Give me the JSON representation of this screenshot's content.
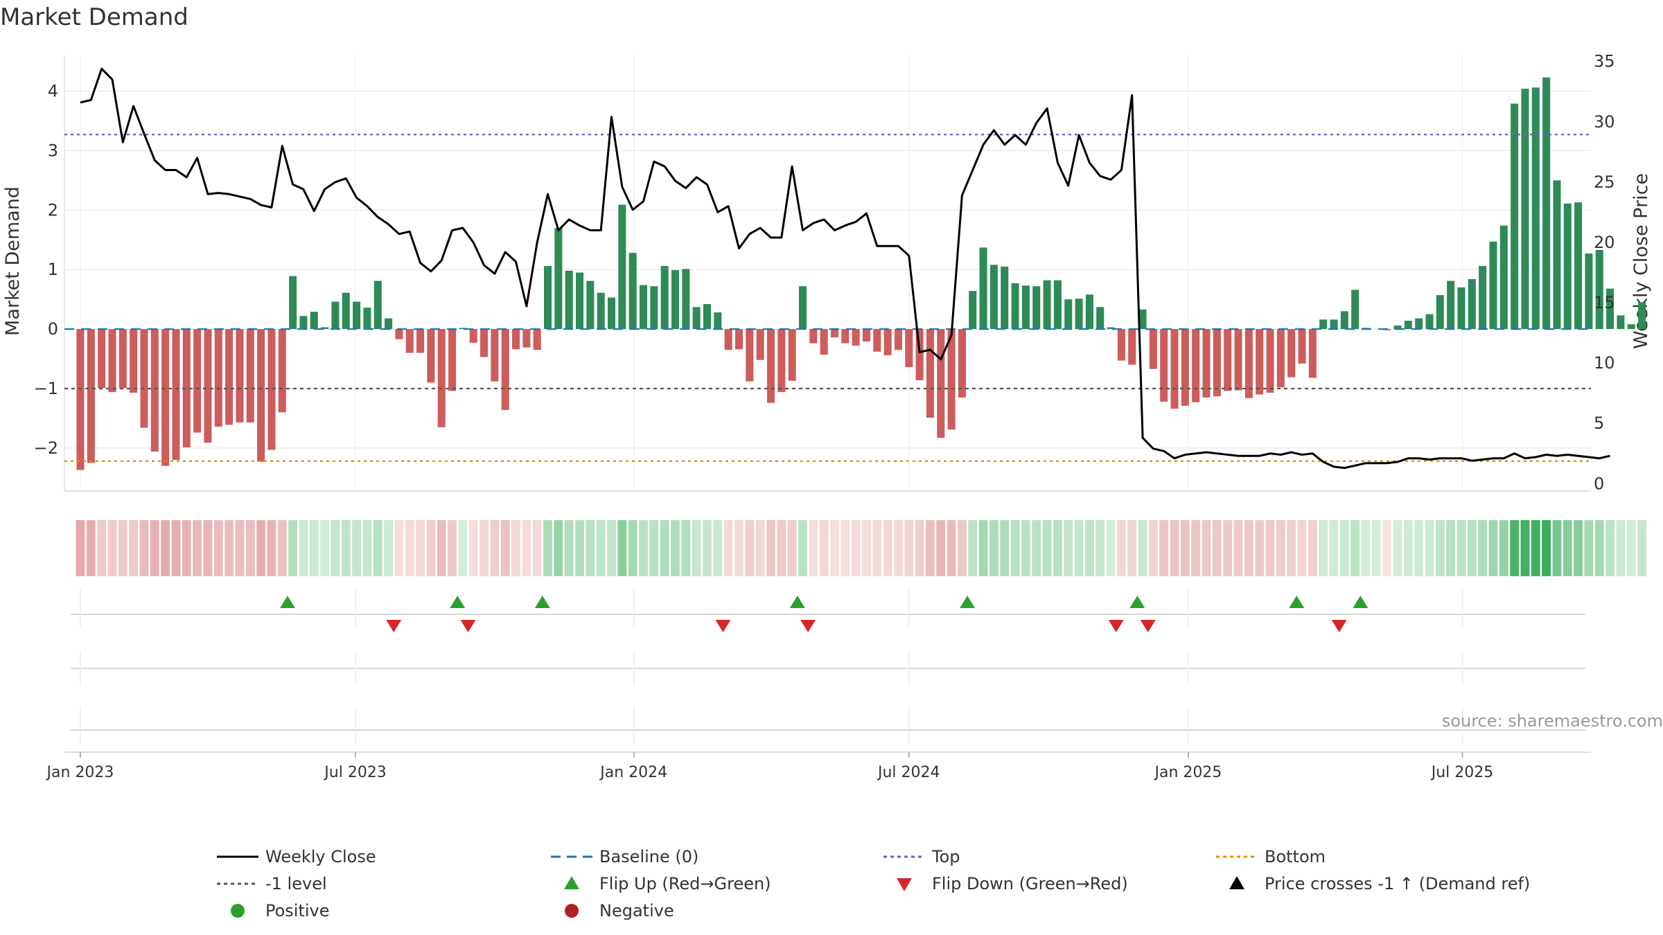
{
  "chart_data": {
    "type": "bar",
    "title": "Market Demand",
    "ylabel": "Market Demand",
    "y2label": "Weekly Close Price",
    "ylim": [
      -2.7,
      4.6
    ],
    "y2lim": [
      -0.5,
      35.5
    ],
    "yticks": [
      -2,
      -1,
      0,
      1,
      2,
      3,
      4
    ],
    "y2ticks": [
      0,
      5,
      10,
      15,
      20,
      25,
      30,
      35
    ],
    "x_range": [
      -1.5,
      142.2
    ],
    "x_ticks": [
      {
        "label": "Jan 2023",
        "week": 0
      },
      {
        "label": "Jul 2023",
        "week": 25.9
      },
      {
        "label": "Jan 2024",
        "week": 52.1
      },
      {
        "label": "Jul 2024",
        "week": 78.0
      },
      {
        "label": "Jan 2025",
        "week": 104.3
      },
      {
        "label": "Jul 2025",
        "week": 130.1
      }
    ],
    "reference_lines": {
      "top": 3.27,
      "bottom": -2.22,
      "minus_one_level": -1,
      "baseline": 0
    },
    "series": [
      {
        "name": "Market Demand",
        "type": "bar",
        "values": [
          -2.37,
          -2.25,
          -0.99,
          -1.06,
          -0.99,
          -1.07,
          -1.66,
          -2.06,
          -2.3,
          -2.2,
          -1.99,
          -1.74,
          -1.91,
          -1.64,
          -1.61,
          -1.57,
          -1.57,
          -2.23,
          -2.03,
          -1.4,
          0.89,
          0.22,
          0.29,
          0.03,
          0.46,
          0.61,
          0.46,
          0.36,
          0.81,
          0.18,
          -0.17,
          -0.4,
          -0.4,
          -0.9,
          -1.65,
          -1.04,
          0.02,
          -0.23,
          -0.47,
          -0.88,
          -1.36,
          -0.34,
          -0.31,
          -0.35,
          1.06,
          1.7,
          0.98,
          0.95,
          0.81,
          0.61,
          0.53,
          2.09,
          1.28,
          0.74,
          0.72,
          1.06,
          0.99,
          1.01,
          0.37,
          0.42,
          0.28,
          -0.35,
          -0.34,
          -0.88,
          -0.52,
          -1.24,
          -1.06,
          -0.87,
          0.72,
          -0.24,
          -0.43,
          -0.14,
          -0.24,
          -0.28,
          -0.21,
          -0.38,
          -0.44,
          -0.35,
          -0.64,
          -0.86,
          -1.49,
          -1.83,
          -1.69,
          -1.15,
          0.64,
          1.37,
          1.08,
          1.05,
          0.77,
          0.73,
          0.72,
          0.82,
          0.82,
          0.5,
          0.51,
          0.58,
          0.37,
          0.03,
          -0.53,
          -0.6,
          0.33,
          -0.67,
          -1.22,
          -1.34,
          -1.29,
          -1.23,
          -1.15,
          -1.13,
          -1.04,
          -1.03,
          -1.16,
          -1.1,
          -1.07,
          -0.98,
          -0.81,
          -0.58,
          -0.82,
          0.16,
          0.16,
          0.3,
          0.66,
          0.02,
          0.0,
          -0.02,
          0.06,
          0.14,
          0.18,
          0.25,
          0.57,
          0.81,
          0.7,
          0.84,
          1.06,
          1.47,
          1.74,
          3.79,
          4.04,
          4.06,
          4.23,
          2.5,
          2.11,
          2.13,
          1.27,
          1.33,
          0.68,
          0.23,
          0.08,
          0.45
        ]
      },
      {
        "name": "Weekly Close",
        "type": "line",
        "values": [
          31.6,
          31.8,
          34.4,
          33.5,
          28.3,
          31.3,
          29.0,
          26.8,
          26.0,
          26.0,
          25.4,
          27.0,
          24.0,
          24.1,
          24.0,
          23.8,
          23.6,
          23.1,
          22.9,
          28.0,
          24.8,
          24.4,
          22.6,
          24.4,
          25.0,
          25.3,
          23.7,
          23.0,
          22.1,
          21.5,
          20.7,
          20.9,
          18.3,
          17.6,
          18.5,
          21.0,
          21.2,
          20.0,
          18.1,
          17.4,
          19.2,
          18.4,
          14.7,
          20.0,
          24.0,
          21.0,
          21.9,
          21.4,
          21.0,
          21.0,
          30.4,
          24.6,
          22.7,
          23.4,
          26.7,
          26.3,
          25.1,
          24.5,
          25.4,
          24.8,
          22.5,
          23.0,
          19.5,
          20.7,
          21.2,
          20.4,
          20.4,
          26.3,
          21.0,
          21.6,
          21.9,
          21.0,
          21.4,
          21.7,
          22.4,
          19.7,
          19.7,
          19.7,
          18.9,
          10.9,
          11.1,
          10.3,
          12.3,
          23.9,
          26.0,
          28.1,
          29.3,
          28.1,
          28.9,
          28.1,
          29.9,
          31.1,
          26.6,
          24.7,
          28.9,
          26.6,
          25.5,
          25.2,
          26.0,
          32.2,
          3.8,
          2.9,
          2.7,
          2.1,
          2.4,
          2.5,
          2.6,
          2.5,
          2.4,
          2.3,
          2.3,
          2.3,
          2.5,
          2.4,
          2.6,
          2.4,
          2.5,
          1.8,
          1.4,
          1.3,
          1.5,
          1.7,
          1.7,
          1.7,
          1.8,
          2.1,
          2.1,
          2.0,
          2.1,
          2.1,
          2.1,
          1.9,
          2.0,
          2.1,
          2.1,
          2.5,
          2.1,
          2.2,
          2.4,
          2.3,
          2.4,
          2.3,
          2.2,
          2.1,
          2.3
        ]
      },
      {
        "name": "Flip Up (Red→Green)",
        "type": "scatter",
        "weeks": [
          19.5,
          35.5,
          43.5,
          67.5,
          83.5,
          99.5,
          114.5,
          120.5
        ]
      },
      {
        "name": "Flip Down (Green→Red)",
        "type": "scatter",
        "weeks": [
          29.5,
          36.5,
          60.5,
          68.5,
          97.5,
          100.5,
          118.5
        ]
      }
    ],
    "legend": {
      "placement": "bottom",
      "items": [
        {
          "label": "Weekly Close",
          "marker": "line-solid",
          "color": "#000000"
        },
        {
          "label": "Baseline (0)",
          "marker": "line-dashed",
          "color": "#1f77b4"
        },
        {
          "label": "Top",
          "marker": "line-dotted",
          "color": "#6a5acd"
        },
        {
          "label": "Bottom",
          "marker": "line-dotted",
          "color": "#e68a00"
        },
        {
          "label": "-1 level",
          "marker": "line-dotted",
          "color": "#555555"
        },
        {
          "label": "Flip Up (Red→Green)",
          "marker": "triangle-up",
          "color": "#2ca02c"
        },
        {
          "label": "Flip Down (Green→Red)",
          "marker": "triangle-down",
          "color": "#d62728"
        },
        {
          "label": "Price crosses -1 ↑ (Demand ref)",
          "marker": "triangle-up",
          "color": "#000000"
        },
        {
          "label": "Positive",
          "marker": "circle",
          "color": "#2ca02c"
        },
        {
          "label": "Negative",
          "marker": "circle",
          "color": "#b22222"
        }
      ]
    },
    "source": "source: sharemaestro.com"
  },
  "colors": {
    "positive_bar": "#2e8b57",
    "negative_bar": "#cd5c5c",
    "price_line": "#000000",
    "top_line": "#6a5acd",
    "bottom_line": "#e68a00",
    "baseline": "#1f77b4",
    "minus_one": "#555555",
    "flip_up": "#2ca02c",
    "flip_down": "#d62728"
  }
}
